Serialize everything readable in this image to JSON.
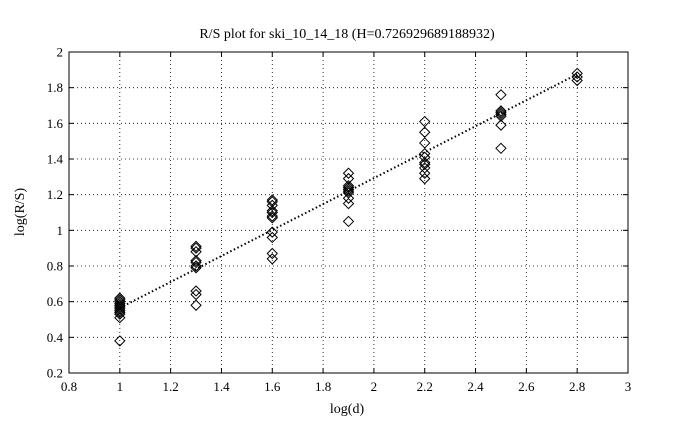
{
  "chart_data": {
    "type": "scatter",
    "title": "R/S plot for ski_10_14_18 (H=0.726929689188932)",
    "xlabel": "log(d)",
    "ylabel": "log(R/S)",
    "xlim": [
      0.8,
      3
    ],
    "ylim": [
      0.2,
      2
    ],
    "xticks": [
      "0.8",
      "1",
      "1.2",
      "1.4",
      "1.6",
      "1.8",
      "2",
      "2.2",
      "2.4",
      "2.6",
      "2.8",
      "3"
    ],
    "yticks": [
      "0.2",
      "0.4",
      "0.6",
      "0.8",
      "1",
      "1.2",
      "1.4",
      "1.6",
      "1.8",
      "2"
    ],
    "grid": true,
    "marker": "diamond",
    "points": [
      [
        1.0,
        0.38
      ],
      [
        1.0,
        0.51
      ],
      [
        1.0,
        0.53
      ],
      [
        1.0,
        0.54
      ],
      [
        1.0,
        0.55
      ],
      [
        1.0,
        0.56
      ],
      [
        1.0,
        0.57
      ],
      [
        1.0,
        0.58
      ],
      [
        1.0,
        0.59
      ],
      [
        1.0,
        0.6
      ],
      [
        1.0,
        0.61
      ],
      [
        1.0,
        0.62
      ],
      [
        1.3,
        0.58
      ],
      [
        1.3,
        0.64
      ],
      [
        1.3,
        0.66
      ],
      [
        1.3,
        0.79
      ],
      [
        1.3,
        0.8
      ],
      [
        1.3,
        0.82
      ],
      [
        1.3,
        0.83
      ],
      [
        1.3,
        0.88
      ],
      [
        1.3,
        0.9
      ],
      [
        1.3,
        0.91
      ],
      [
        1.6,
        0.84
      ],
      [
        1.6,
        0.87
      ],
      [
        1.6,
        0.96
      ],
      [
        1.6,
        0.99
      ],
      [
        1.6,
        1.07
      ],
      [
        1.6,
        1.08
      ],
      [
        1.6,
        1.1
      ],
      [
        1.6,
        1.11
      ],
      [
        1.6,
        1.14
      ],
      [
        1.6,
        1.16
      ],
      [
        1.6,
        1.17
      ],
      [
        1.9,
        1.05
      ],
      [
        1.9,
        1.15
      ],
      [
        1.9,
        1.18
      ],
      [
        1.9,
        1.21
      ],
      [
        1.9,
        1.22
      ],
      [
        1.9,
        1.23
      ],
      [
        1.9,
        1.24
      ],
      [
        1.9,
        1.25
      ],
      [
        1.9,
        1.29
      ],
      [
        1.9,
        1.32
      ],
      [
        2.2,
        1.29
      ],
      [
        2.2,
        1.32
      ],
      [
        2.2,
        1.35
      ],
      [
        2.2,
        1.37
      ],
      [
        2.2,
        1.38
      ],
      [
        2.2,
        1.41
      ],
      [
        2.2,
        1.43
      ],
      [
        2.2,
        1.49
      ],
      [
        2.2,
        1.55
      ],
      [
        2.2,
        1.61
      ],
      [
        2.5,
        1.46
      ],
      [
        2.5,
        1.59
      ],
      [
        2.5,
        1.64
      ],
      [
        2.5,
        1.65
      ],
      [
        2.5,
        1.66
      ],
      [
        2.5,
        1.67
      ],
      [
        2.5,
        1.76
      ],
      [
        2.8,
        1.84
      ],
      [
        2.8,
        1.86
      ],
      [
        2.8,
        1.88
      ]
    ],
    "fit_line": {
      "x": [
        1.0,
        2.8
      ],
      "y": [
        0.565,
        1.875
      ],
      "style": "dotted"
    },
    "colors": {
      "marker": "#000000",
      "line": "#000000",
      "grid": "#000000",
      "background": "#ffffff"
    }
  }
}
